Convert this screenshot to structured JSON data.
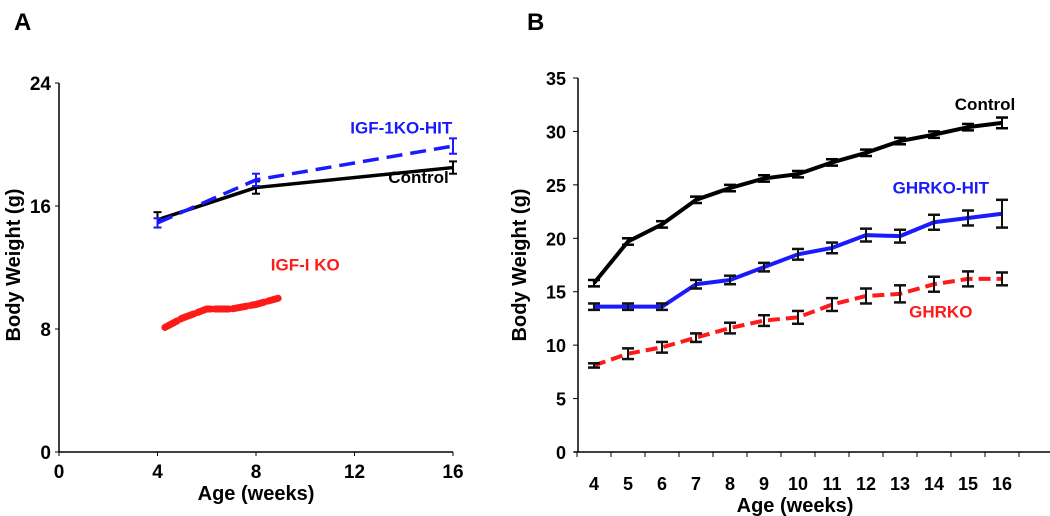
{
  "chart_data": [
    {
      "panel": "A",
      "type": "line",
      "xlabel": "Age (weeks)",
      "ylabel": "Body Weight (g)",
      "xlim": [
        0,
        16
      ],
      "ylim": [
        0,
        24
      ],
      "xticks": [
        0,
        4,
        8,
        12,
        16
      ],
      "yticks": [
        0,
        8,
        16,
        24
      ],
      "grid": false,
      "series": [
        {
          "name": "Control",
          "color": "#000000",
          "dash": false,
          "x": [
            4,
            8,
            16
          ],
          "y": [
            15.1,
            17.2,
            18.5
          ],
          "err": [
            0.5,
            0.4,
            0.4
          ]
        },
        {
          "name": "IGF-1KO-HIT",
          "color": "#1a1aff",
          "dash": true,
          "x": [
            4,
            8,
            16
          ],
          "y": [
            14.9,
            17.7,
            19.9
          ],
          "err": [
            0.3,
            0.4,
            0.5
          ]
        },
        {
          "name": "IGF-I KO",
          "color": "#ff1a1a",
          "dash": true,
          "x": [
            4.3,
            5,
            6,
            7,
            8,
            8.9
          ],
          "y": [
            8.1,
            8.7,
            9.3,
            9.3,
            9.6,
            10.0
          ],
          "err": []
        }
      ],
      "labels": [
        {
          "text": "IGF-1KO-HIT",
          "color": "#1a1aff",
          "x": 13.9,
          "y": 20.7
        },
        {
          "text": "Control",
          "color": "#000000",
          "x": 14.6,
          "y": 17.5
        },
        {
          "text": "IGF-I KO",
          "color": "#ff1a1a",
          "x": 10.0,
          "y": 11.8
        }
      ]
    },
    {
      "panel": "B",
      "type": "line",
      "xlabel": "Age (weeks)",
      "ylabel": "Body Weight (g)",
      "categories": [
        4,
        5,
        6,
        7,
        8,
        9,
        10,
        11,
        12,
        13,
        14,
        15,
        16
      ],
      "ylim": [
        0,
        35
      ],
      "yticks": [
        0,
        5,
        10,
        15,
        20,
        25,
        30,
        35
      ],
      "grid": false,
      "series": [
        {
          "name": "Control",
          "color": "#000000",
          "dash": false,
          "values": [
            15.8,
            19.7,
            21.3,
            23.6,
            24.7,
            25.6,
            26.0,
            27.1,
            28.0,
            29.1,
            29.7,
            30.4,
            30.8
          ],
          "err": [
            0.3,
            0.3,
            0.3,
            0.3,
            0.3,
            0.3,
            0.3,
            0.3,
            0.3,
            0.3,
            0.3,
            0.3,
            0.5
          ]
        },
        {
          "name": "GHRKO-HIT",
          "color": "#1a1aff",
          "dash": false,
          "values": [
            13.6,
            13.6,
            13.6,
            15.7,
            16.1,
            17.3,
            18.5,
            19.1,
            20.3,
            20.2,
            21.5,
            21.9,
            22.3
          ],
          "err": [
            0.3,
            0.3,
            0.3,
            0.4,
            0.4,
            0.4,
            0.5,
            0.5,
            0.6,
            0.6,
            0.7,
            0.7,
            1.3
          ]
        },
        {
          "name": "GHRKO",
          "color": "#ff1a1a",
          "dash": true,
          "values": [
            8.1,
            9.2,
            9.8,
            10.7,
            11.6,
            12.3,
            12.6,
            13.8,
            14.6,
            14.8,
            15.7,
            16.2,
            16.2
          ],
          "err": [
            0.2,
            0.5,
            0.5,
            0.4,
            0.5,
            0.5,
            0.6,
            0.6,
            0.7,
            0.8,
            0.7,
            0.7,
            0.6
          ]
        }
      ],
      "labels": [
        {
          "text": "Control",
          "color": "#000000",
          "cat": 15.5,
          "y": 32.0
        },
        {
          "text": "GHRKO-HIT",
          "color": "#1a1aff",
          "cat": 14.2,
          "y": 24.2
        },
        {
          "text": "GHRKO",
          "color": "#ff1a1a",
          "cat": 14.2,
          "y": 12.6
        }
      ]
    }
  ]
}
